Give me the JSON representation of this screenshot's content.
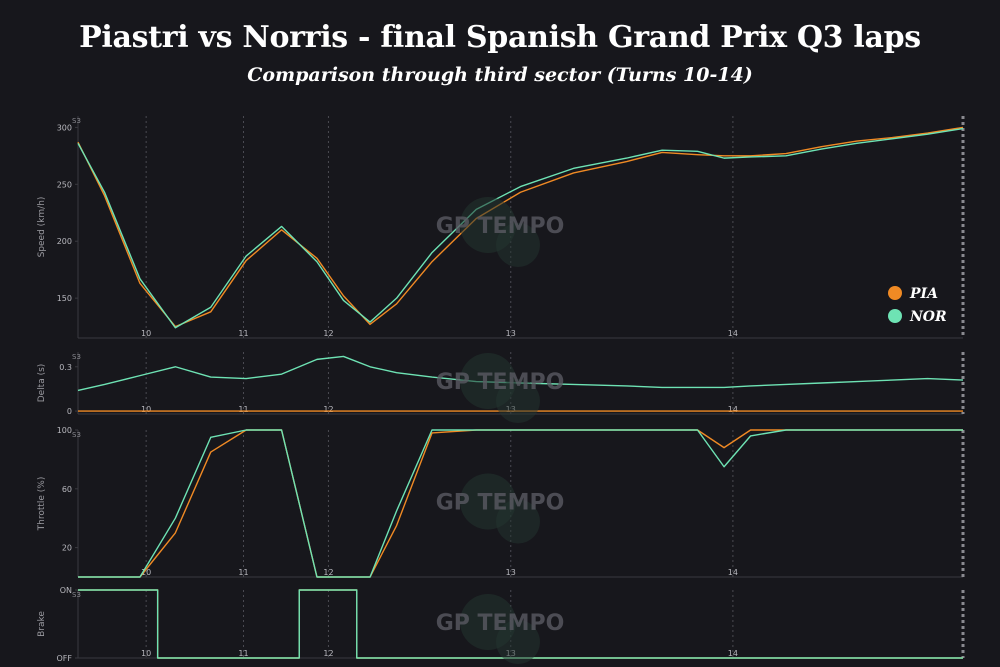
{
  "title": "Piastri vs Norris - final Spanish Grand Prix Q3 laps",
  "subtitle": "Comparison through third sector (Turns 10-14)",
  "watermark": "GP TEMPO",
  "colors": {
    "background": "#17171c",
    "PIA": "#f08a24",
    "NOR": "#6ee3b4",
    "axis": "#3a3a40",
    "vline": "#4a4a52",
    "sector_line": "#8a8a90"
  },
  "chart_data": {
    "type": "line",
    "x": [
      0,
      3,
      7,
      11,
      15,
      19,
      23,
      27,
      30,
      33,
      36,
      40,
      45,
      50,
      56,
      62,
      66,
      70,
      73,
      76,
      80,
      84,
      88,
      92,
      96,
      100
    ],
    "x_range": [
      0,
      100
    ],
    "turn_markers": [
      {
        "label": "10",
        "x": 7.7
      },
      {
        "label": "11",
        "x": 18.7
      },
      {
        "label": "12",
        "x": 28.3
      },
      {
        "label": "13",
        "x": 48.9
      },
      {
        "label": "14",
        "x": 74.0
      }
    ],
    "sector_label": "S3",
    "panels": [
      {
        "ylabel": "Speed (km/h)",
        "ylim": [
          115,
          310
        ],
        "yticks": [
          150,
          200,
          250,
          300
        ],
        "legend_position": "bottom-right",
        "series": [
          {
            "name": "PIA",
            "values": [
              287,
              240,
              163,
              125,
              138,
              183,
              210,
              185,
              152,
              127,
              145,
              182,
              220,
              243,
              260,
              270,
              278,
              276,
              275,
              275,
              277,
              283,
              288,
              291,
              295,
              300
            ]
          },
          {
            "name": "NOR",
            "values": [
              286,
              243,
              167,
              124,
              142,
              187,
              213,
              182,
              148,
              129,
              150,
              190,
              228,
              248,
              264,
              273,
              280,
              279,
              273,
              274,
              275,
              281,
              286,
              290,
              294,
              299
            ]
          }
        ]
      },
      {
        "ylabel": "Delta (s)",
        "ylim": [
          -0.02,
          0.4
        ],
        "yticks": [
          0,
          0.3
        ],
        "series": [
          {
            "name": "PIA",
            "values": [
              0,
              0,
              0,
              0,
              0,
              0,
              0,
              0,
              0,
              0,
              0,
              0,
              0,
              0,
              0,
              0,
              0,
              0,
              0,
              0,
              0,
              0,
              0,
              0,
              0,
              0
            ]
          },
          {
            "name": "NOR",
            "values": [
              0.14,
              0.18,
              0.24,
              0.3,
              0.23,
              0.22,
              0.25,
              0.35,
              0.37,
              0.3,
              0.26,
              0.23,
              0.2,
              0.19,
              0.18,
              0.17,
              0.16,
              0.16,
              0.16,
              0.17,
              0.18,
              0.19,
              0.2,
              0.21,
              0.22,
              0.21
            ]
          }
        ]
      },
      {
        "ylabel": "Throttle (%)",
        "ylim": [
          0,
          100
        ],
        "yticks": [
          20,
          60,
          100
        ],
        "series": [
          {
            "name": "PIA",
            "values": [
              0,
              0,
              0,
              30,
              85,
              100,
              100,
              0,
              0,
              0,
              35,
              98,
              100,
              100,
              100,
              100,
              100,
              100,
              88,
              100,
              100,
              100,
              100,
              100,
              100,
              100
            ]
          },
          {
            "name": "NOR",
            "values": [
              0,
              0,
              0,
              40,
              95,
              100,
              100,
              0,
              0,
              0,
              45,
              100,
              100,
              100,
              100,
              100,
              100,
              100,
              75,
              96,
              100,
              100,
              100,
              100,
              100,
              100
            ]
          }
        ]
      },
      {
        "ylabel": "Brake",
        "ylim": [
          0,
          1
        ],
        "yticks": [
          0,
          1
        ],
        "ytick_labels": [
          "OFF",
          "ON"
        ],
        "series": [
          {
            "name": "PIA",
            "values": [
              1,
              1,
              1,
              0,
              0,
              0,
              0,
              1,
              1,
              0,
              0,
              0,
              0,
              0,
              0,
              0,
              0,
              0,
              0,
              0,
              0,
              0,
              0,
              0,
              0,
              0
            ]
          },
          {
            "name": "NOR",
            "values": [
              1,
              1,
              1,
              0,
              0,
              0,
              0,
              1,
              1,
              0,
              0,
              0,
              0,
              0,
              0,
              0,
              0,
              0,
              0,
              0,
              0,
              0,
              0,
              0,
              0,
              0
            ]
          }
        ]
      }
    ],
    "legend": [
      "PIA",
      "NOR"
    ]
  }
}
